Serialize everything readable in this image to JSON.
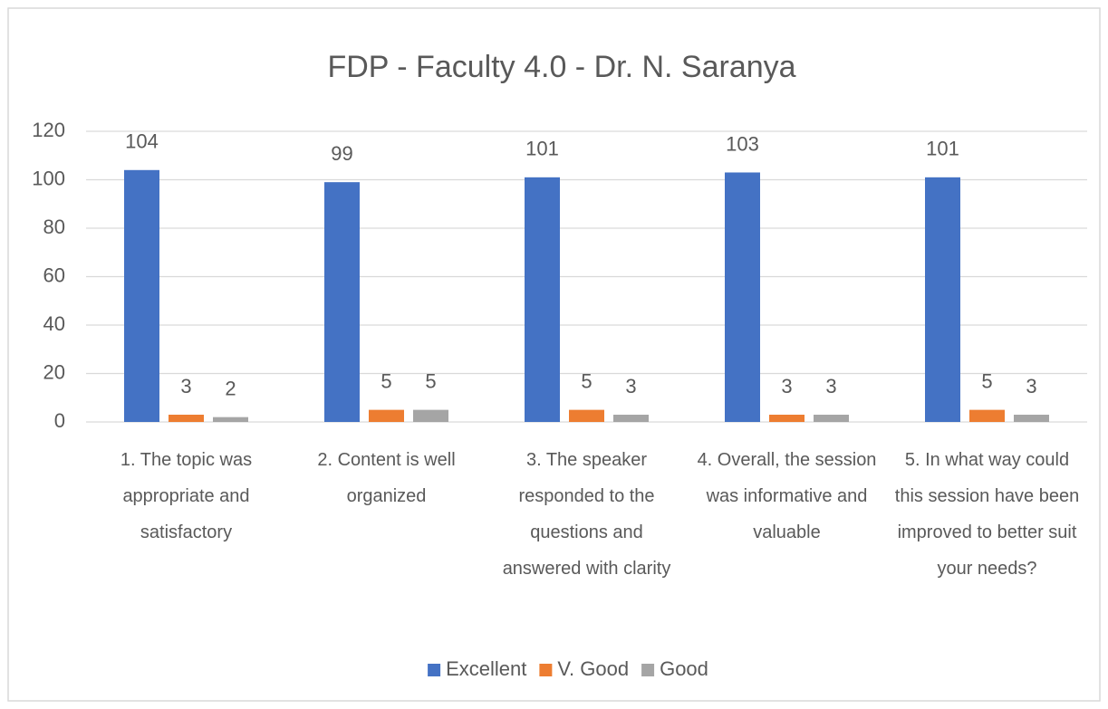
{
  "chart_data": {
    "type": "bar",
    "title": "FDP - Faculty 4.0 - Dr. N. Saranya",
    "categories": [
      "1. The topic was appropriate and satisfactory",
      "2. Content is well organized",
      "3. The speaker responded to the questions and answered with clarity",
      "4. Overall, the session was informative and valuable",
      "5. In what way could this session have been improved to better suit your needs?"
    ],
    "series": [
      {
        "name": "Excellent",
        "color": "#4472c4",
        "values": [
          104,
          99,
          101,
          103,
          101
        ]
      },
      {
        "name": "V. Good",
        "color": "#ed7d31",
        "values": [
          3,
          5,
          5,
          3,
          5
        ]
      },
      {
        "name": "Good",
        "color": "#a5a5a5",
        "values": [
          2,
          5,
          3,
          3,
          3
        ]
      }
    ],
    "ylim": [
      0,
      120
    ],
    "yticks": [
      0,
      20,
      40,
      60,
      80,
      100,
      120
    ],
    "grid": true,
    "legend": "bottom"
  }
}
